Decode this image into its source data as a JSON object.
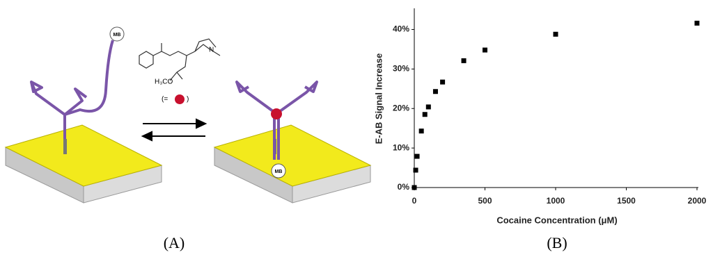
{
  "chart_data": {
    "type": "scatter",
    "x_label": "Cocaine Concentration (μM)",
    "y_label": "E-AB Signal Increase",
    "x": [
      0,
      10,
      20,
      50,
      75,
      100,
      150,
      200,
      350,
      500,
      1000,
      2000
    ],
    "values": [
      0,
      4.4,
      7.9,
      14.3,
      18.5,
      20.4,
      24.3,
      26.7,
      32.1,
      34.8,
      38.8,
      41.6
    ],
    "color": "#000000",
    "xlim": [
      0,
      2000
    ],
    "xticks": [
      0,
      500,
      1000,
      1500,
      2000
    ],
    "ylim": [
      0,
      45
    ],
    "yticks": [
      {
        "value": 0,
        "label": "0%"
      },
      {
        "value": 10,
        "label": "10%"
      },
      {
        "value": 20,
        "label": "20%"
      },
      {
        "value": 30,
        "label": "30%"
      },
      {
        "value": 40,
        "label": "40%"
      }
    ],
    "grid": false
  },
  "panels": [
    "(A)",
    "(B)"
  ],
  "diagram": {
    "reporter_left": "MB",
    "reporter_right": "MB",
    "ester_group": "H₃CO",
    "amine": "N",
    "legend_open": "(=",
    "legend_close": ")"
  }
}
